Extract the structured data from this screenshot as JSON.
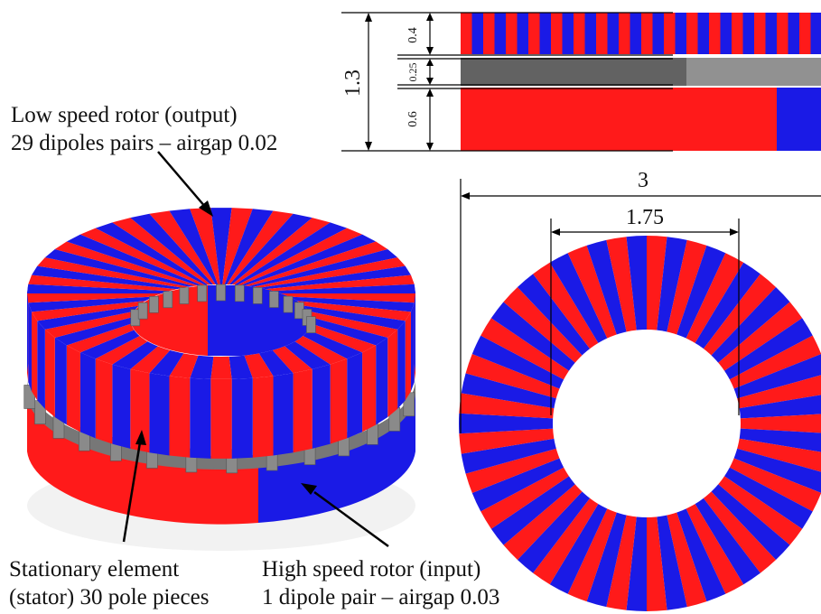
{
  "colors": {
    "magnet_red": "#ff1a1a",
    "magnet_blue": "#1a1ae6",
    "pole_piece_grey": "#8a8a8a",
    "dimension_line": "#000000"
  },
  "section_view": {
    "total_height": "1.3",
    "low_speed_layer": "0.4",
    "stator_layer": "0.25",
    "high_speed_layer": "0.6"
  },
  "top_view": {
    "outer_diameter": "3",
    "inner_diameter": "1.75",
    "pole_segments": 58
  },
  "labels": {
    "low_speed_rotor_line1": "Low speed rotor (output)",
    "low_speed_rotor_line2": "29 dipoles pairs – airgap 0.02",
    "stator_line1": "Stationary element",
    "stator_line2": "(stator) 30 pole pieces",
    "high_speed_line1": "High speed rotor (input)",
    "high_speed_line2": "1 dipole pair – airgap 0.03"
  },
  "model_3d": {
    "low_speed_dipole_pairs": 29,
    "stator_pole_pieces": 30
  }
}
